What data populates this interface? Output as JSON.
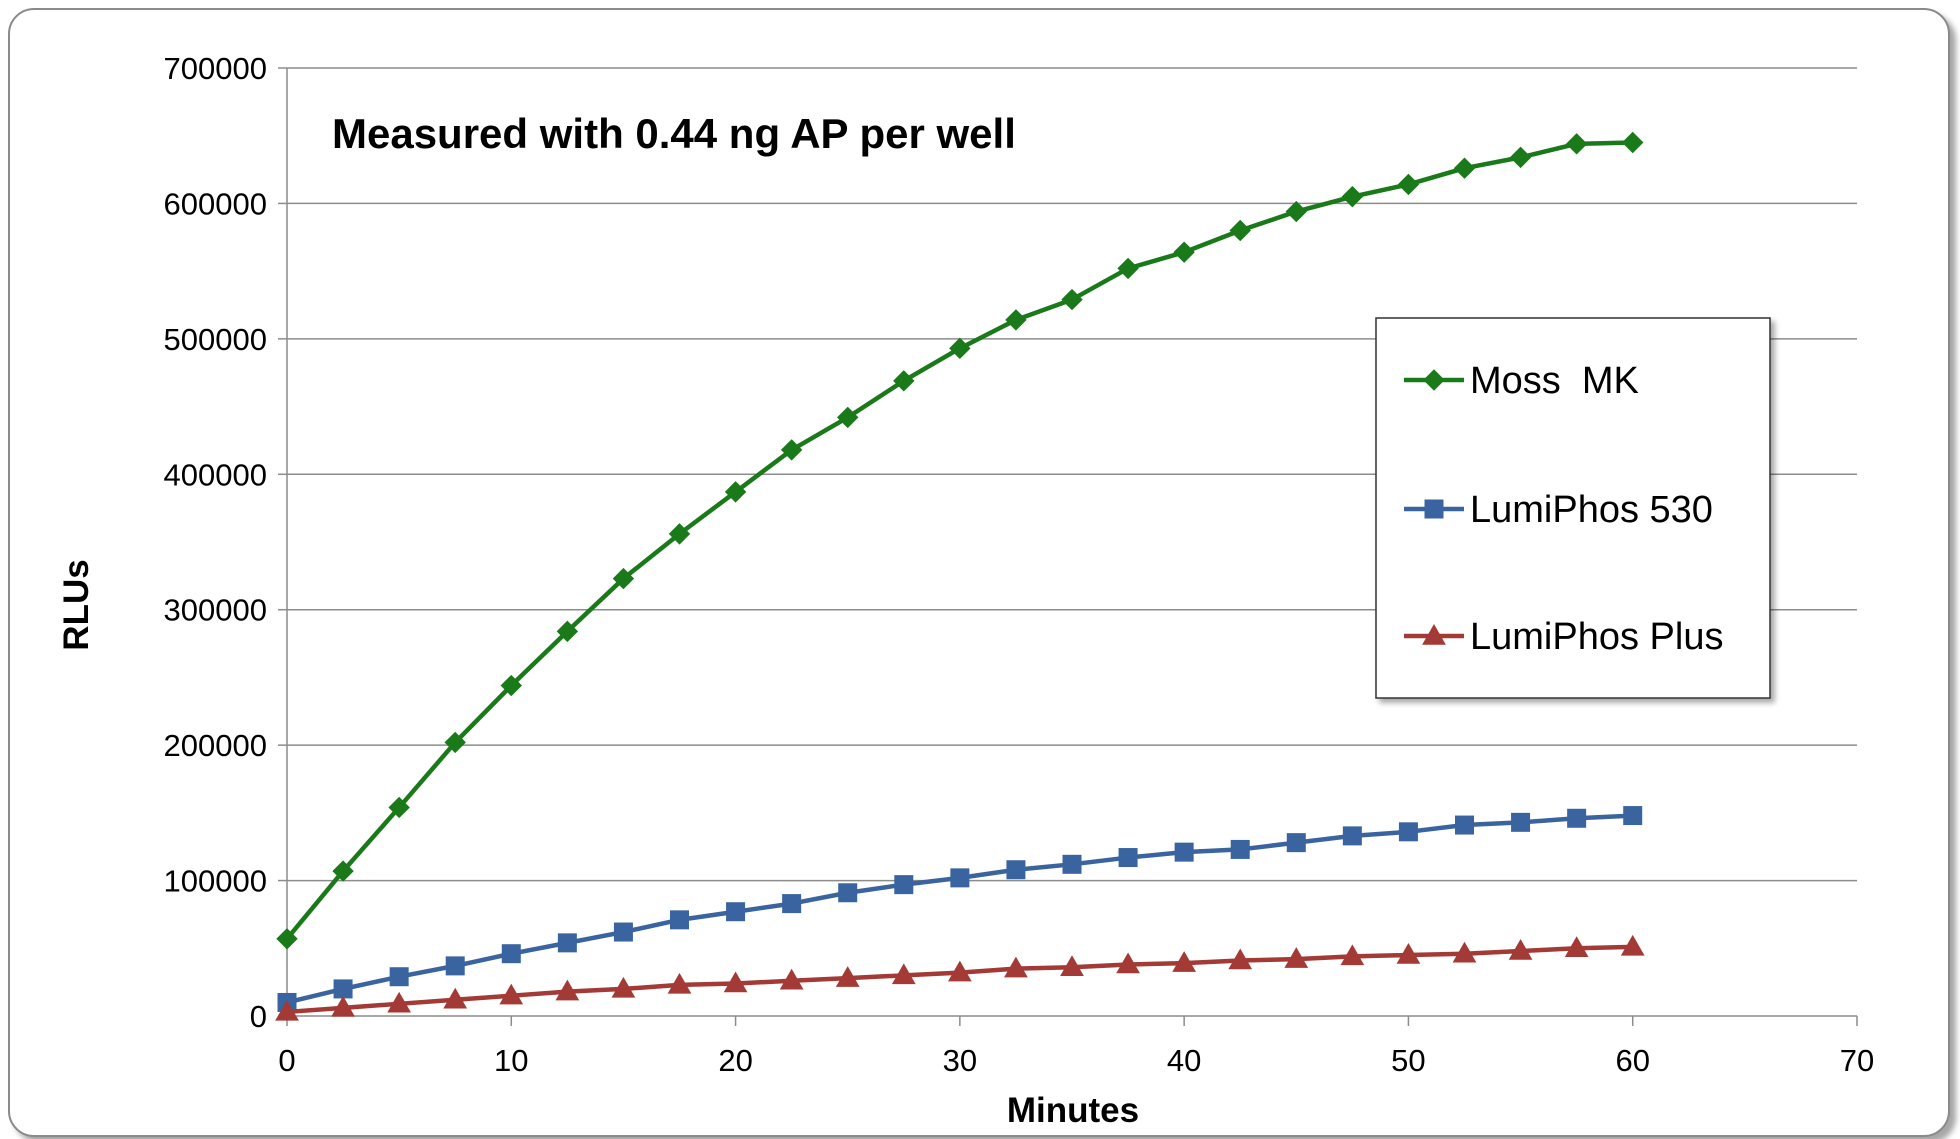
{
  "chart_data": {
    "type": "line",
    "title": "Measured with 0.44 ng AP per well",
    "xlabel": "Minutes",
    "ylabel": "RLUs",
    "xlim": [
      0,
      70
    ],
    "ylim": [
      0,
      700000
    ],
    "xticks": [
      "0",
      "10",
      "20",
      "30",
      "40",
      "50",
      "60",
      "70"
    ],
    "yticks": [
      "0",
      "100000",
      "200000",
      "300000",
      "400000",
      "500000",
      "600000",
      "700000"
    ],
    "grid": "horizontal",
    "legend_position": "right",
    "x": [
      0,
      2.5,
      5,
      7.5,
      10,
      12.5,
      15,
      17.5,
      20,
      22.5,
      25,
      27.5,
      30,
      32.5,
      35,
      37.5,
      40,
      42.5,
      45,
      47.5,
      50,
      52.5,
      55,
      57.5,
      60
    ],
    "series": [
      {
        "name": "Moss  MK",
        "color": "#1a7a1a",
        "marker": "diamond",
        "values": [
          57000,
          107000,
          154000,
          202000,
          244000,
          284000,
          323000,
          356000,
          387000,
          418000,
          442000,
          469000,
          493000,
          514000,
          529000,
          552000,
          564000,
          580000,
          594000,
          605000,
          614000,
          626000,
          634000,
          644000,
          645000
        ]
      },
      {
        "name": "LumiPhos 530",
        "color": "#3a64a0",
        "marker": "square",
        "values": [
          10000,
          20000,
          29000,
          37000,
          46000,
          54000,
          62000,
          71000,
          77000,
          83000,
          91000,
          97000,
          102000,
          108000,
          112000,
          117000,
          121000,
          123000,
          128000,
          133000,
          136000,
          141000,
          143000,
          146000,
          148000
        ]
      },
      {
        "name": "LumiPhos Plus",
        "color": "#a33a36",
        "marker": "triangle",
        "values": [
          3000,
          6000,
          9000,
          12000,
          15000,
          18000,
          20000,
          23000,
          24000,
          26000,
          28000,
          30000,
          32000,
          35000,
          36000,
          38000,
          39000,
          41000,
          42000,
          44000,
          45000,
          46000,
          48000,
          50000,
          51000
        ]
      }
    ]
  }
}
